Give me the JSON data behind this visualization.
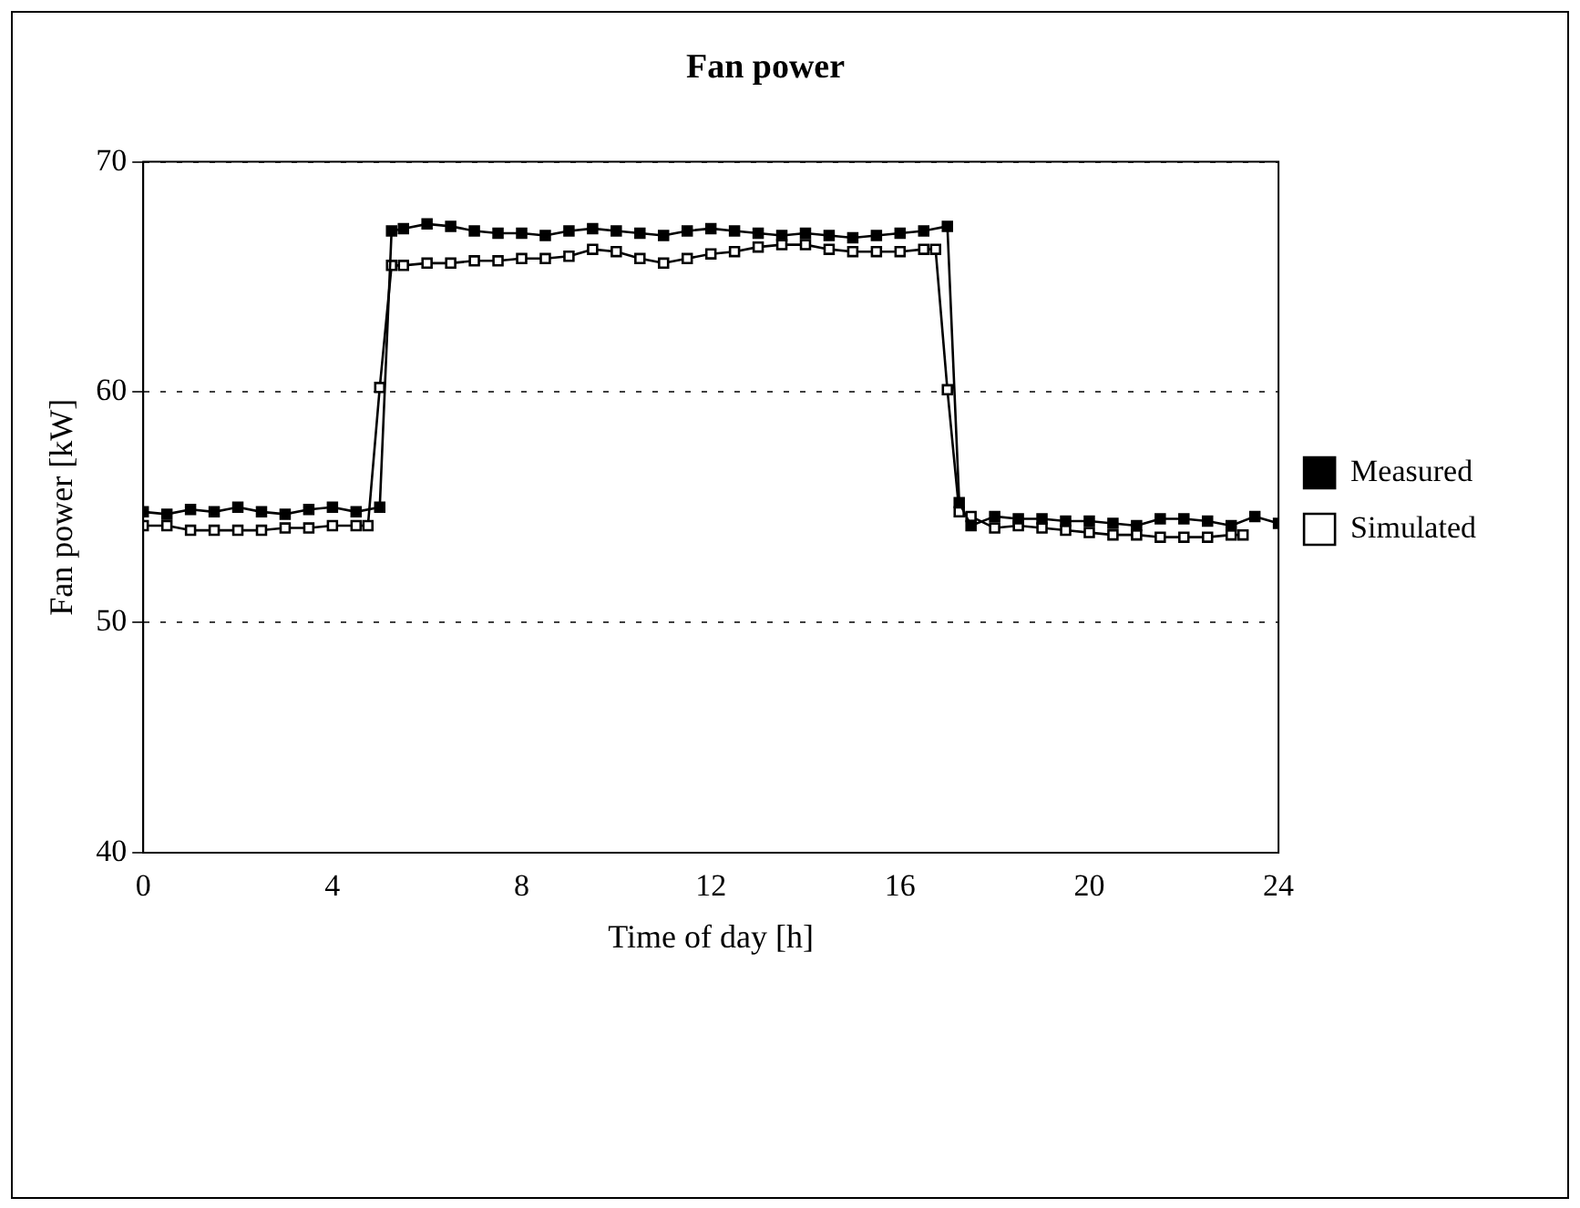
{
  "chart_data": {
    "type": "line",
    "title": "Fan power",
    "xlabel": "Time of day [h]",
    "ylabel": "Fan power [kW]",
    "xlim": [
      0,
      24
    ],
    "xticks": [
      0,
      4,
      8,
      12,
      16,
      20,
      24
    ],
    "ylim": [
      40,
      70
    ],
    "yticks": [
      40,
      50,
      60,
      70
    ],
    "grid": "y",
    "legend": "right",
    "marker": "square",
    "line_style": "solid",
    "series": [
      {
        "name": "Measured",
        "color": "#000000",
        "x": [
          0,
          0.5,
          1,
          1.5,
          2,
          2.5,
          3,
          3.5,
          4,
          4.5,
          5,
          5.25,
          5.5,
          6,
          6.5,
          7,
          7.5,
          8,
          8.5,
          9,
          9.5,
          10,
          10.5,
          11,
          11.5,
          12,
          12.5,
          13,
          13.5,
          14,
          14.5,
          15,
          15.5,
          16,
          16.5,
          17,
          17.25,
          17.5,
          18,
          18.5,
          19,
          19.5,
          20,
          20.5,
          21,
          21.5,
          22,
          22.5,
          23,
          23.5,
          24
        ],
        "values": [
          54.8,
          54.7,
          54.9,
          54.8,
          55.0,
          54.8,
          54.7,
          54.9,
          55.0,
          54.8,
          55.0,
          67.0,
          67.1,
          67.3,
          67.2,
          67.0,
          66.9,
          66.9,
          66.8,
          67.0,
          67.1,
          67.0,
          66.9,
          66.8,
          67.0,
          67.1,
          67.0,
          66.9,
          66.8,
          66.9,
          66.8,
          66.7,
          66.8,
          66.9,
          67.0,
          67.2,
          55.2,
          54.2,
          54.6,
          54.5,
          54.5,
          54.4,
          54.4,
          54.3,
          54.2,
          54.5,
          54.5,
          54.4,
          54.2,
          54.6,
          54.3
        ]
      },
      {
        "name": "Simulated",
        "color": "#000000",
        "x": [
          0,
          0.5,
          1,
          1.5,
          2,
          2.5,
          3,
          3.5,
          4,
          4.5,
          4.75,
          5,
          5.25,
          5.5,
          6,
          6.5,
          7,
          7.5,
          8,
          8.5,
          9,
          9.5,
          10,
          10.5,
          11,
          11.5,
          12,
          12.5,
          13,
          13.5,
          14,
          14.5,
          15,
          15.5,
          16,
          16.5,
          16.75,
          17,
          17.25,
          17.5,
          18,
          18.5,
          19,
          19.5,
          20,
          20.5,
          21,
          21.5,
          22,
          22.5,
          23,
          23.25
        ],
        "values": [
          54.2,
          54.2,
          54.0,
          54.0,
          54.0,
          54.0,
          54.1,
          54.1,
          54.2,
          54.2,
          54.2,
          60.2,
          65.5,
          65.5,
          65.6,
          65.6,
          65.7,
          65.7,
          65.8,
          65.8,
          65.9,
          66.2,
          66.1,
          65.8,
          65.6,
          65.8,
          66.0,
          66.1,
          66.3,
          66.4,
          66.4,
          66.2,
          66.1,
          66.1,
          66.1,
          66.2,
          66.2,
          60.1,
          54.8,
          54.6,
          54.1,
          54.2,
          54.1,
          54.0,
          53.9,
          53.8,
          53.8,
          53.7,
          53.7,
          53.7,
          53.8,
          53.8
        ]
      }
    ]
  }
}
